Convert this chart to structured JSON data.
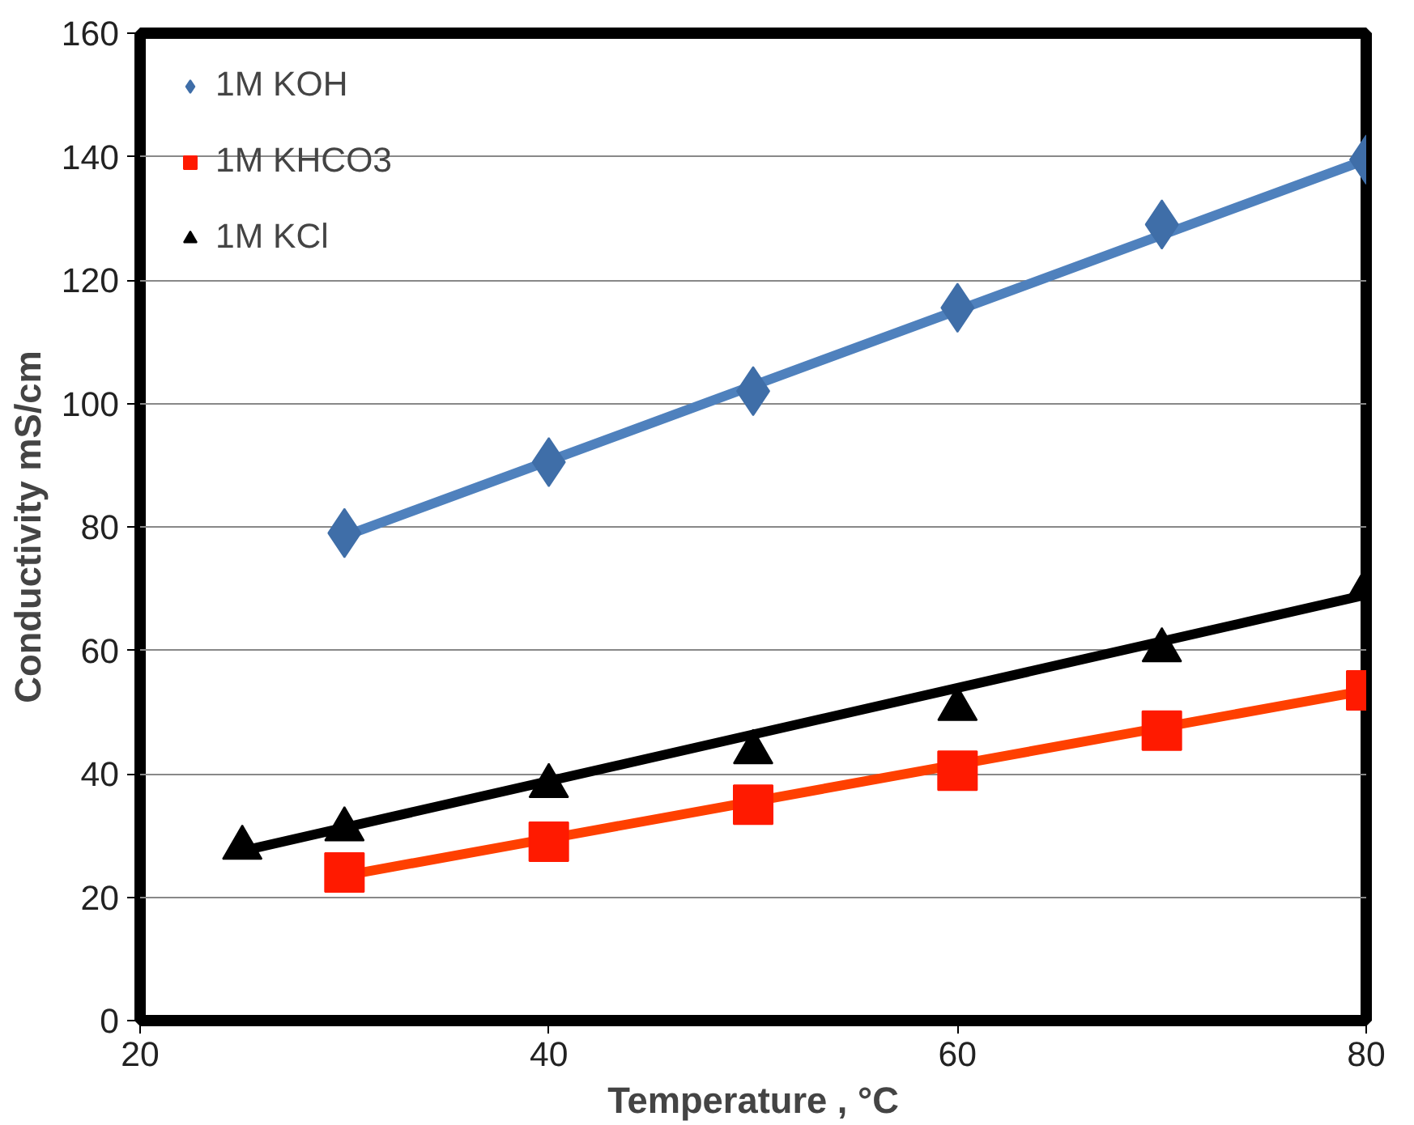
{
  "chart_data": {
    "type": "scatter",
    "xlabel": "Temperature , °C",
    "ylabel": "Conductivity mS/cm",
    "xlim": [
      20,
      80
    ],
    "xticks": [
      20,
      40,
      60,
      80
    ],
    "ylim": [
      0,
      160
    ],
    "yticks": [
      0,
      20,
      40,
      60,
      80,
      100,
      120,
      140,
      160
    ],
    "grid": "y",
    "legend": "top left",
    "series": [
      {
        "name": "1M KOH",
        "marker": "diamond",
        "color": "#3f6ea8",
        "x": [
          30,
          40,
          50,
          60,
          70,
          80
        ],
        "values": [
          79,
          90.5,
          102,
          115.5,
          129,
          139.5
        ]
      },
      {
        "name": "1M KHCO3",
        "marker": "square",
        "color": "#ff1a00",
        "x": [
          30,
          40,
          50,
          60,
          70,
          80
        ],
        "values": [
          24,
          29,
          35,
          40.5,
          47,
          53.5
        ]
      },
      {
        "name": "1M KCl",
        "marker": "triangle",
        "color": "#000000",
        "x": [
          25,
          30,
          40,
          50,
          60,
          70,
          80
        ],
        "values": [
          28,
          31,
          38,
          43.5,
          50.5,
          60,
          70
        ]
      },
      {
        "type": "line",
        "color": "#4f81bd",
        "x": [
          30,
          80
        ],
        "values": [
          78.5,
          139.5
        ]
      },
      {
        "type": "line",
        "color": "#ff4000",
        "x": [
          30,
          80
        ],
        "values": [
          23.5,
          53.5
        ]
      },
      {
        "type": "line",
        "color": "#000000",
        "x": [
          25,
          80
        ],
        "values": [
          27.5,
          69
        ]
      }
    ]
  }
}
